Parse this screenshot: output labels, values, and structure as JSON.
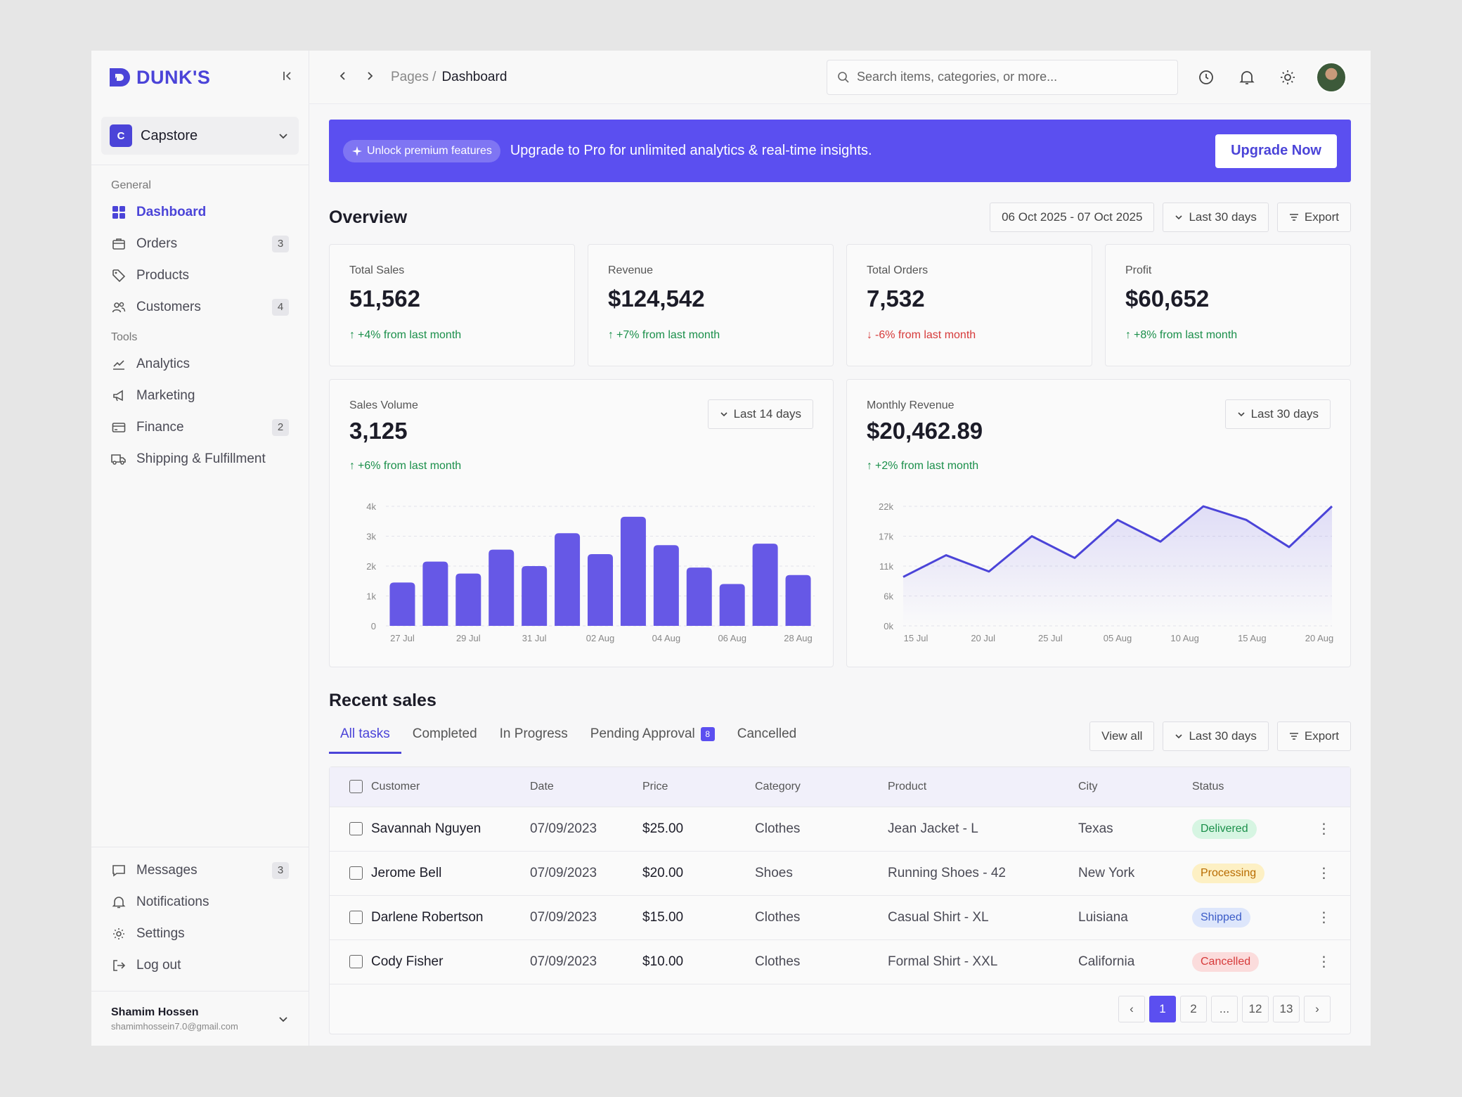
{
  "brand": {
    "name": "DUNK'S",
    "color": "#4b44d8"
  },
  "workspace": {
    "initial": "C",
    "name": "Capstore"
  },
  "sidebar": {
    "general_label": "General",
    "tools_label": "Tools",
    "general": [
      {
        "label": "Dashboard",
        "icon": "grid-icon",
        "active": true
      },
      {
        "label": "Orders",
        "icon": "box-icon",
        "count": "3"
      },
      {
        "label": "Products",
        "icon": "tag-icon"
      },
      {
        "label": "Customers",
        "icon": "users-icon",
        "count": "4"
      }
    ],
    "tools": [
      {
        "label": "Analytics",
        "icon": "chart-line-icon"
      },
      {
        "label": "Marketing",
        "icon": "megaphone-icon"
      },
      {
        "label": "Finance",
        "icon": "card-icon",
        "count": "2"
      },
      {
        "label": "Shipping & Fulfillment",
        "icon": "truck-icon"
      }
    ],
    "bottom": [
      {
        "label": "Messages",
        "icon": "message-icon",
        "count": "3"
      },
      {
        "label": "Notifications",
        "icon": "bell-icon"
      },
      {
        "label": "Settings",
        "icon": "gear-icon"
      },
      {
        "label": "Log out",
        "icon": "logout-icon"
      }
    ],
    "user": {
      "name": "Shamim Hossen",
      "email": "shamimhossein7.0@gmail.com"
    }
  },
  "topbar": {
    "crumb_parent": "Pages /",
    "crumb_current": "Dashboard",
    "search_placeholder": "Search items, categories, or more..."
  },
  "promo": {
    "pill": "Unlock premium features",
    "text": "Upgrade to Pro for unlimited analytics & real-time insights.",
    "button": "Upgrade Now"
  },
  "overview": {
    "title": "Overview",
    "date_range": "06 Oct 2025 - 07 Oct 2025",
    "period": "Last 30 days",
    "export": "Export",
    "stats": [
      {
        "label": "Total Sales",
        "value": "51,562",
        "trend": "+4% from last month",
        "dir": "up"
      },
      {
        "label": "Revenue",
        "value": "$124,542",
        "trend": "+7% from last month",
        "dir": "up"
      },
      {
        "label": "Total Orders",
        "value": "7,532",
        "trend": "-6% from last month",
        "dir": "down"
      },
      {
        "label": "Profit",
        "value": "$60,652",
        "trend": "+8% from last month",
        "dir": "up"
      }
    ]
  },
  "chart_data": [
    {
      "type": "bar",
      "title": "Sales Volume",
      "value": "3,125",
      "trend": "+6% from last month",
      "period": "Last 14 days",
      "color": "#6658e6",
      "y_ticks": [
        "0",
        "1k",
        "2k",
        "3k",
        "4k"
      ],
      "ylim": [
        0,
        4000
      ],
      "x_labels": [
        "27 Jul",
        "29 Jul",
        "31 Jul",
        "02 Aug",
        "04 Aug",
        "06 Aug",
        "28 Aug"
      ],
      "values": [
        1450,
        2150,
        1750,
        2550,
        2000,
        3100,
        2400,
        3650,
        2700,
        1950,
        1400,
        2750,
        1700
      ]
    },
    {
      "type": "area",
      "title": "Monthly Revenue",
      "value": "$20,462.89",
      "trend": "+2% from last month",
      "period": "Last 30 days",
      "color": "#4b44d8",
      "y_ticks": [
        "0k",
        "6k",
        "11k",
        "17k",
        "22k"
      ],
      "ylim": [
        0,
        22000
      ],
      "x_labels": [
        "15 Jul",
        "20 Jul",
        "25 Jul",
        "05 Aug",
        "10 Aug",
        "15 Aug",
        "20 Aug"
      ],
      "values": [
        9000,
        13000,
        10000,
        16500,
        12500,
        19500,
        15500,
        22000,
        19500,
        14500,
        22500
      ]
    }
  ],
  "recent": {
    "title": "Recent sales",
    "tabs": [
      {
        "label": "All tasks",
        "active": true
      },
      {
        "label": "Completed"
      },
      {
        "label": "In Progress"
      },
      {
        "label": "Pending Approval",
        "count": "8"
      },
      {
        "label": "Cancelled"
      }
    ],
    "view_all": "View all",
    "period": "Last 30 days",
    "export": "Export",
    "columns": [
      "Customer",
      "Date",
      "Price",
      "Category",
      "Product",
      "City",
      "Status"
    ],
    "rows": [
      {
        "customer": "Savannah Nguyen",
        "date": "07/09/2023",
        "price": "$25.00",
        "category": "Clothes",
        "product": "Jean Jacket - L",
        "city": "Texas",
        "status": "Delivered",
        "status_bg": "#d6f5e2",
        "status_fg": "#1a8f4a"
      },
      {
        "customer": "Jerome Bell",
        "date": "07/09/2023",
        "price": "$20.00",
        "category": "Shoes",
        "product": "Running Shoes - 42",
        "city": "New York",
        "status": "Processing",
        "status_bg": "#fdf0c4",
        "status_fg": "#b86b00"
      },
      {
        "customer": "Darlene Robertson",
        "date": "07/09/2023",
        "price": "$15.00",
        "category": "Clothes",
        "product": "Casual Shirt - XL",
        "city": "Luisiana",
        "status": "Shipped",
        "status_bg": "#dde6fb",
        "status_fg": "#3a5bc7"
      },
      {
        "customer": "Cody Fisher",
        "date": "07/09/2023",
        "price": "$10.00",
        "category": "Clothes",
        "product": "Formal Shirt - XXL",
        "city": "California",
        "status": "Cancelled",
        "status_bg": "#fbdcdc",
        "status_fg": "#d63a3a"
      }
    ],
    "pages": [
      "‹",
      "1",
      "2",
      "...",
      "12",
      "13",
      "›"
    ],
    "current_page": "1"
  }
}
